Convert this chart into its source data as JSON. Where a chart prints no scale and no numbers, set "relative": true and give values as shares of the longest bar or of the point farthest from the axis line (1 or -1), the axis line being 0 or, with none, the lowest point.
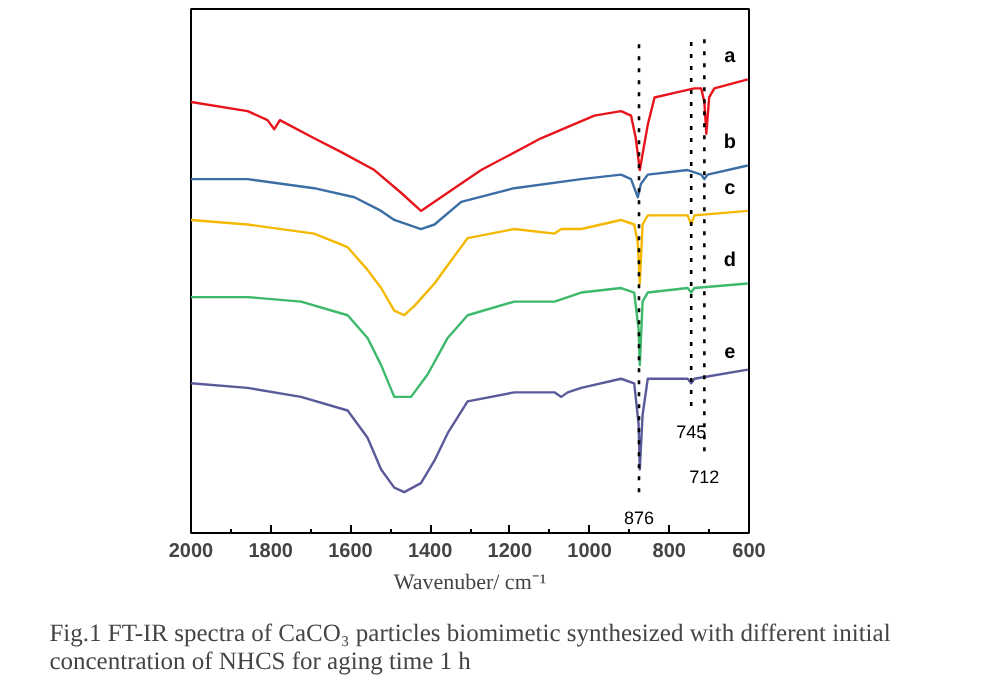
{
  "chart_data": {
    "type": "line",
    "relative": true,
    "title": "Fig.1 FT-IR spectra of CaCO₃ particles biomimetic synthesized with different initial\nconcentration of NHCS for aging time 1 h",
    "xlabel": "Wavenuber/ cm⁻¹",
    "xlim": [
      2000,
      600
    ],
    "xticks": [
      2000,
      1800,
      1600,
      1400,
      1200,
      1000,
      800,
      600
    ],
    "tick_labels": "x",
    "grid": false,
    "legend": false,
    "marker": "none",
    "line_style": "solid",
    "series": [
      {
        "name": "a",
        "color": "#e8141c",
        "x": [
          2000,
          1858,
          1808,
          1791,
          1777,
          1691,
          1624,
          1540,
          1473,
          1423,
          1356,
          1272,
          1122,
          988,
          921,
          896,
          884,
          874,
          864,
          854,
          837,
          787,
          737,
          720,
          712,
          707,
          700,
          687,
          603
        ],
        "values": [
          0.95,
          0.93,
          0.91,
          0.89,
          0.91,
          0.87,
          0.84,
          0.8,
          0.75,
          0.71,
          0.75,
          0.8,
          0.87,
          0.92,
          0.93,
          0.92,
          0.87,
          0.8,
          0.85,
          0.9,
          0.96,
          0.97,
          0.98,
          0.98,
          0.95,
          0.88,
          0.96,
          0.98,
          1.0
        ]
      },
      {
        "name": "b",
        "color": "#3a6ea5",
        "x": [
          2000,
          1858,
          1691,
          1590,
          1523,
          1490,
          1423,
          1389,
          1322,
          1189,
          1021,
          921,
          896,
          879,
          871,
          854,
          754,
          720,
          712,
          704,
          603
        ],
        "values": [
          0.78,
          0.78,
          0.76,
          0.74,
          0.71,
          0.69,
          0.67,
          0.68,
          0.73,
          0.76,
          0.78,
          0.79,
          0.78,
          0.74,
          0.77,
          0.79,
          0.8,
          0.79,
          0.78,
          0.79,
          0.81
        ]
      },
      {
        "name": "c",
        "color": "#f5b800",
        "x": [
          2000,
          1858,
          1691,
          1607,
          1557,
          1523,
          1490,
          1465,
          1440,
          1389,
          1356,
          1306,
          1189,
          1088,
          1071,
          1021,
          921,
          888,
          879,
          874,
          867,
          854,
          754,
          745,
          737,
          603
        ],
        "values": [
          0.69,
          0.68,
          0.66,
          0.63,
          0.58,
          0.54,
          0.49,
          0.48,
          0.5,
          0.55,
          0.59,
          0.65,
          0.67,
          0.66,
          0.67,
          0.67,
          0.69,
          0.68,
          0.64,
          0.55,
          0.68,
          0.7,
          0.7,
          0.68,
          0.7,
          0.71
        ]
      },
      {
        "name": "d",
        "color": "#3cb96a",
        "x": [
          2000,
          1858,
          1724,
          1607,
          1557,
          1523,
          1490,
          1448,
          1406,
          1356,
          1306,
          1189,
          1088,
          1021,
          921,
          888,
          877,
          874,
          867,
          854,
          754,
          745,
          737,
          603
        ],
        "values": [
          0.52,
          0.52,
          0.51,
          0.48,
          0.43,
          0.37,
          0.3,
          0.3,
          0.35,
          0.43,
          0.48,
          0.51,
          0.51,
          0.53,
          0.54,
          0.53,
          0.45,
          0.37,
          0.51,
          0.53,
          0.54,
          0.53,
          0.54,
          0.55
        ]
      },
      {
        "name": "e",
        "color": "#5a5a9a",
        "x": [
          2000,
          1858,
          1724,
          1607,
          1557,
          1523,
          1490,
          1465,
          1423,
          1389,
          1356,
          1306,
          1189,
          1088,
          1071,
          1055,
          1021,
          921,
          888,
          877,
          874,
          867,
          854,
          754,
          745,
          737,
          603
        ],
        "values": [
          0.33,
          0.32,
          0.3,
          0.27,
          0.21,
          0.14,
          0.1,
          0.09,
          0.11,
          0.16,
          0.22,
          0.29,
          0.31,
          0.31,
          0.3,
          0.31,
          0.32,
          0.34,
          0.33,
          0.24,
          0.14,
          0.26,
          0.34,
          0.34,
          0.33,
          0.34,
          0.36
        ]
      }
    ],
    "ref_lines": [
      {
        "axis": "x",
        "value": 876,
        "label": "876",
        "line_style": "dotted",
        "color": "#000000"
      },
      {
        "axis": "x",
        "value": 745,
        "label": "745",
        "line_style": "dotted",
        "color": "#000000"
      },
      {
        "axis": "x",
        "value": 712,
        "label": "712",
        "line_style": "dotted",
        "color": "#000000"
      }
    ]
  }
}
